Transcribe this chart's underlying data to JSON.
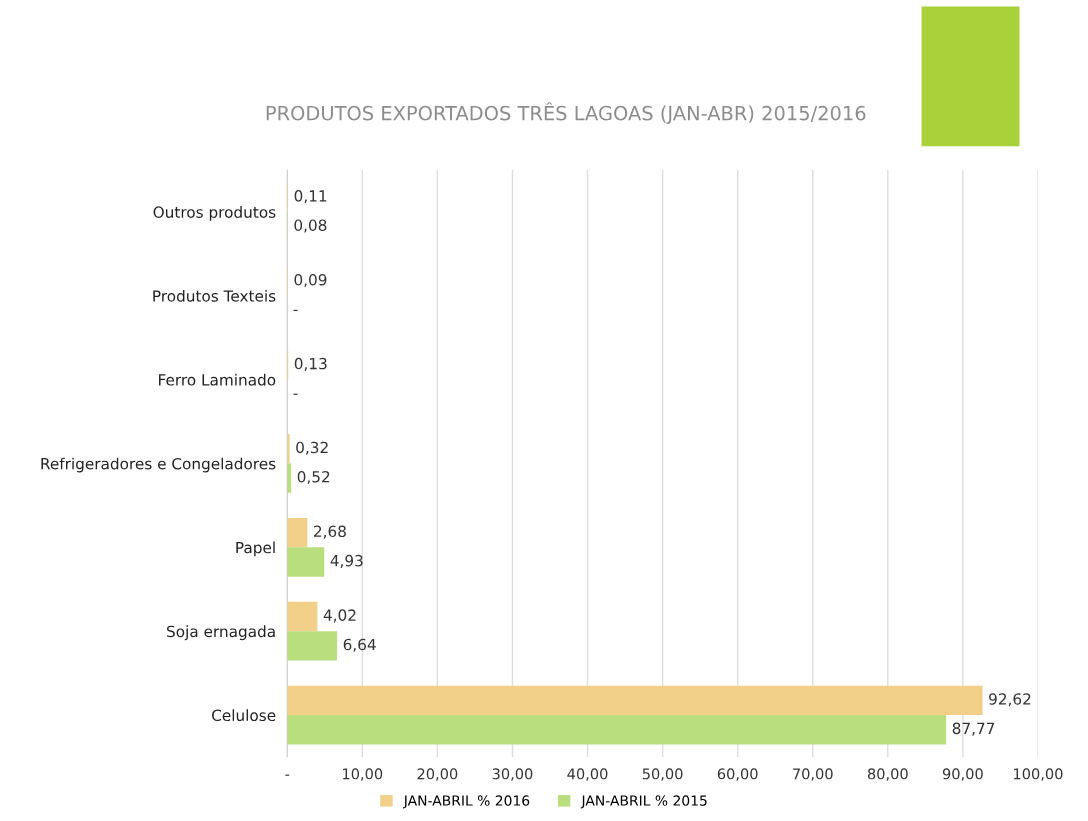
{
  "chart_data": {
    "type": "bar",
    "orientation": "horizontal",
    "title": "PRODUTOS EXPORTADOS TRÊS LAGOAS (JAN-ABR) 2015/2016",
    "categories": [
      "Outros produtos",
      "Produtos Texteis",
      "Ferro Laminado",
      "Refrigeradores e Congeladores",
      "Papel",
      "Soja ernagada",
      "Celulose"
    ],
    "series": [
      {
        "name": "JAN-ABRIL % 2016",
        "color": "#f3d08a",
        "values": [
          0.11,
          0.09,
          0.13,
          0.32,
          2.68,
          4.02,
          92.62
        ],
        "value_labels": [
          "0,11",
          "0,09",
          "0,13",
          "0,32",
          "2,68",
          "4,02",
          "92,62"
        ]
      },
      {
        "name": "JAN-ABRIL % 2015",
        "color": "#b9de7e",
        "values": [
          0.08,
          0,
          0,
          0.52,
          4.93,
          6.64,
          87.77
        ],
        "value_labels": [
          "0,08",
          "-",
          "-",
          "0,52",
          "4,93",
          "6,64",
          "87,77"
        ]
      }
    ],
    "xlim": [
      0,
      100
    ],
    "xticks": [
      {
        "value": 0,
        "label": "-"
      },
      {
        "value": 10,
        "label": "10,00"
      },
      {
        "value": 20,
        "label": "20,00"
      },
      {
        "value": 30,
        "label": "30,00"
      },
      {
        "value": 40,
        "label": "40,00"
      },
      {
        "value": 50,
        "label": "50,00"
      },
      {
        "value": 60,
        "label": "60,00"
      },
      {
        "value": 70,
        "label": "70,00"
      },
      {
        "value": 80,
        "label": "80,00"
      },
      {
        "value": 90,
        "label": "90,00"
      },
      {
        "value": 100,
        "label": "100,00"
      }
    ],
    "grid": "x",
    "legend": "bottom"
  }
}
